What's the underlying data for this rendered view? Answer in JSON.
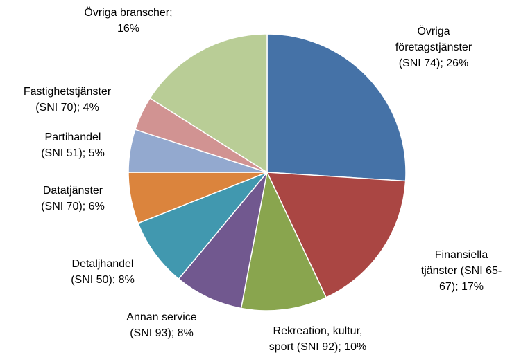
{
  "chart_data": {
    "type": "pie",
    "categories": [
      "Övriga företagstjänster (SNI 74);",
      "Finansiella tjänster (SNI 65-67);",
      "Rekreation, kultur, sport (SNI 92);",
      "Annan service (SNI 93);",
      "Detaljhandel (SNI 50);",
      "Datatjänster (SNI 70);",
      "Partihandel (SNI 51);",
      "Fastighetstjänster (SNI 70);",
      "Övriga branscher;"
    ],
    "values": [
      26,
      17,
      10,
      8,
      8,
      6,
      5,
      4,
      16
    ],
    "value_labels": [
      "26%",
      "17%",
      "10%",
      "8%",
      "8%",
      "6%",
      "5%",
      "4%",
      "16%"
    ],
    "colors": [
      "#4572a7",
      "#aa4643",
      "#89a54e",
      "#71588f",
      "#4198af",
      "#db843d",
      "#93a9cf",
      "#d19392",
      "#b9cd96"
    ]
  }
}
